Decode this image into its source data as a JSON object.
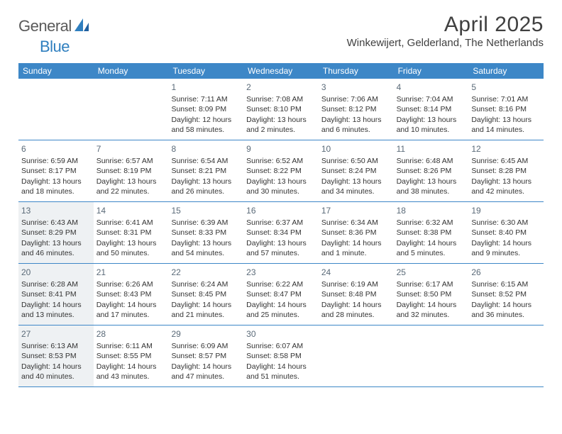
{
  "header": {
    "logo_text_1": "General",
    "logo_text_2": "Blue",
    "month_title": "April 2025",
    "location": "Winkewijert, Gelderland, The Netherlands"
  },
  "colors": {
    "header_bar": "#3d87c7",
    "row_border": "#3d87c7",
    "shaded_bg": "#eef1f3",
    "text": "#333333",
    "logo_gray": "#5a5a5a",
    "logo_blue": "#2f7fbf"
  },
  "dow": [
    "Sunday",
    "Monday",
    "Tuesday",
    "Wednesday",
    "Thursday",
    "Friday",
    "Saturday"
  ],
  "weeks": [
    [
      {
        "num": "",
        "sunrise": "",
        "sunset": "",
        "daylight": "",
        "shaded": false
      },
      {
        "num": "",
        "sunrise": "",
        "sunset": "",
        "daylight": "",
        "shaded": false
      },
      {
        "num": "1",
        "sunrise": "Sunrise: 7:11 AM",
        "sunset": "Sunset: 8:09 PM",
        "daylight": "Daylight: 12 hours and 58 minutes.",
        "shaded": false
      },
      {
        "num": "2",
        "sunrise": "Sunrise: 7:08 AM",
        "sunset": "Sunset: 8:10 PM",
        "daylight": "Daylight: 13 hours and 2 minutes.",
        "shaded": false
      },
      {
        "num": "3",
        "sunrise": "Sunrise: 7:06 AM",
        "sunset": "Sunset: 8:12 PM",
        "daylight": "Daylight: 13 hours and 6 minutes.",
        "shaded": false
      },
      {
        "num": "4",
        "sunrise": "Sunrise: 7:04 AM",
        "sunset": "Sunset: 8:14 PM",
        "daylight": "Daylight: 13 hours and 10 minutes.",
        "shaded": false
      },
      {
        "num": "5",
        "sunrise": "Sunrise: 7:01 AM",
        "sunset": "Sunset: 8:16 PM",
        "daylight": "Daylight: 13 hours and 14 minutes.",
        "shaded": false
      }
    ],
    [
      {
        "num": "6",
        "sunrise": "Sunrise: 6:59 AM",
        "sunset": "Sunset: 8:17 PM",
        "daylight": "Daylight: 13 hours and 18 minutes.",
        "shaded": false
      },
      {
        "num": "7",
        "sunrise": "Sunrise: 6:57 AM",
        "sunset": "Sunset: 8:19 PM",
        "daylight": "Daylight: 13 hours and 22 minutes.",
        "shaded": false
      },
      {
        "num": "8",
        "sunrise": "Sunrise: 6:54 AM",
        "sunset": "Sunset: 8:21 PM",
        "daylight": "Daylight: 13 hours and 26 minutes.",
        "shaded": false
      },
      {
        "num": "9",
        "sunrise": "Sunrise: 6:52 AM",
        "sunset": "Sunset: 8:22 PM",
        "daylight": "Daylight: 13 hours and 30 minutes.",
        "shaded": false
      },
      {
        "num": "10",
        "sunrise": "Sunrise: 6:50 AM",
        "sunset": "Sunset: 8:24 PM",
        "daylight": "Daylight: 13 hours and 34 minutes.",
        "shaded": false
      },
      {
        "num": "11",
        "sunrise": "Sunrise: 6:48 AM",
        "sunset": "Sunset: 8:26 PM",
        "daylight": "Daylight: 13 hours and 38 minutes.",
        "shaded": false
      },
      {
        "num": "12",
        "sunrise": "Sunrise: 6:45 AM",
        "sunset": "Sunset: 8:28 PM",
        "daylight": "Daylight: 13 hours and 42 minutes.",
        "shaded": false
      }
    ],
    [
      {
        "num": "13",
        "sunrise": "Sunrise: 6:43 AM",
        "sunset": "Sunset: 8:29 PM",
        "daylight": "Daylight: 13 hours and 46 minutes.",
        "shaded": true
      },
      {
        "num": "14",
        "sunrise": "Sunrise: 6:41 AM",
        "sunset": "Sunset: 8:31 PM",
        "daylight": "Daylight: 13 hours and 50 minutes.",
        "shaded": false
      },
      {
        "num": "15",
        "sunrise": "Sunrise: 6:39 AM",
        "sunset": "Sunset: 8:33 PM",
        "daylight": "Daylight: 13 hours and 54 minutes.",
        "shaded": false
      },
      {
        "num": "16",
        "sunrise": "Sunrise: 6:37 AM",
        "sunset": "Sunset: 8:34 PM",
        "daylight": "Daylight: 13 hours and 57 minutes.",
        "shaded": false
      },
      {
        "num": "17",
        "sunrise": "Sunrise: 6:34 AM",
        "sunset": "Sunset: 8:36 PM",
        "daylight": "Daylight: 14 hours and 1 minute.",
        "shaded": false
      },
      {
        "num": "18",
        "sunrise": "Sunrise: 6:32 AM",
        "sunset": "Sunset: 8:38 PM",
        "daylight": "Daylight: 14 hours and 5 minutes.",
        "shaded": false
      },
      {
        "num": "19",
        "sunrise": "Sunrise: 6:30 AM",
        "sunset": "Sunset: 8:40 PM",
        "daylight": "Daylight: 14 hours and 9 minutes.",
        "shaded": false
      }
    ],
    [
      {
        "num": "20",
        "sunrise": "Sunrise: 6:28 AM",
        "sunset": "Sunset: 8:41 PM",
        "daylight": "Daylight: 14 hours and 13 minutes.",
        "shaded": true
      },
      {
        "num": "21",
        "sunrise": "Sunrise: 6:26 AM",
        "sunset": "Sunset: 8:43 PM",
        "daylight": "Daylight: 14 hours and 17 minutes.",
        "shaded": false
      },
      {
        "num": "22",
        "sunrise": "Sunrise: 6:24 AM",
        "sunset": "Sunset: 8:45 PM",
        "daylight": "Daylight: 14 hours and 21 minutes.",
        "shaded": false
      },
      {
        "num": "23",
        "sunrise": "Sunrise: 6:22 AM",
        "sunset": "Sunset: 8:47 PM",
        "daylight": "Daylight: 14 hours and 25 minutes.",
        "shaded": false
      },
      {
        "num": "24",
        "sunrise": "Sunrise: 6:19 AM",
        "sunset": "Sunset: 8:48 PM",
        "daylight": "Daylight: 14 hours and 28 minutes.",
        "shaded": false
      },
      {
        "num": "25",
        "sunrise": "Sunrise: 6:17 AM",
        "sunset": "Sunset: 8:50 PM",
        "daylight": "Daylight: 14 hours and 32 minutes.",
        "shaded": false
      },
      {
        "num": "26",
        "sunrise": "Sunrise: 6:15 AM",
        "sunset": "Sunset: 8:52 PM",
        "daylight": "Daylight: 14 hours and 36 minutes.",
        "shaded": false
      }
    ],
    [
      {
        "num": "27",
        "sunrise": "Sunrise: 6:13 AM",
        "sunset": "Sunset: 8:53 PM",
        "daylight": "Daylight: 14 hours and 40 minutes.",
        "shaded": true
      },
      {
        "num": "28",
        "sunrise": "Sunrise: 6:11 AM",
        "sunset": "Sunset: 8:55 PM",
        "daylight": "Daylight: 14 hours and 43 minutes.",
        "shaded": false
      },
      {
        "num": "29",
        "sunrise": "Sunrise: 6:09 AM",
        "sunset": "Sunset: 8:57 PM",
        "daylight": "Daylight: 14 hours and 47 minutes.",
        "shaded": false
      },
      {
        "num": "30",
        "sunrise": "Sunrise: 6:07 AM",
        "sunset": "Sunset: 8:58 PM",
        "daylight": "Daylight: 14 hours and 51 minutes.",
        "shaded": false
      },
      {
        "num": "",
        "sunrise": "",
        "sunset": "",
        "daylight": "",
        "shaded": false
      },
      {
        "num": "",
        "sunrise": "",
        "sunset": "",
        "daylight": "",
        "shaded": false
      },
      {
        "num": "",
        "sunrise": "",
        "sunset": "",
        "daylight": "",
        "shaded": false
      }
    ]
  ]
}
